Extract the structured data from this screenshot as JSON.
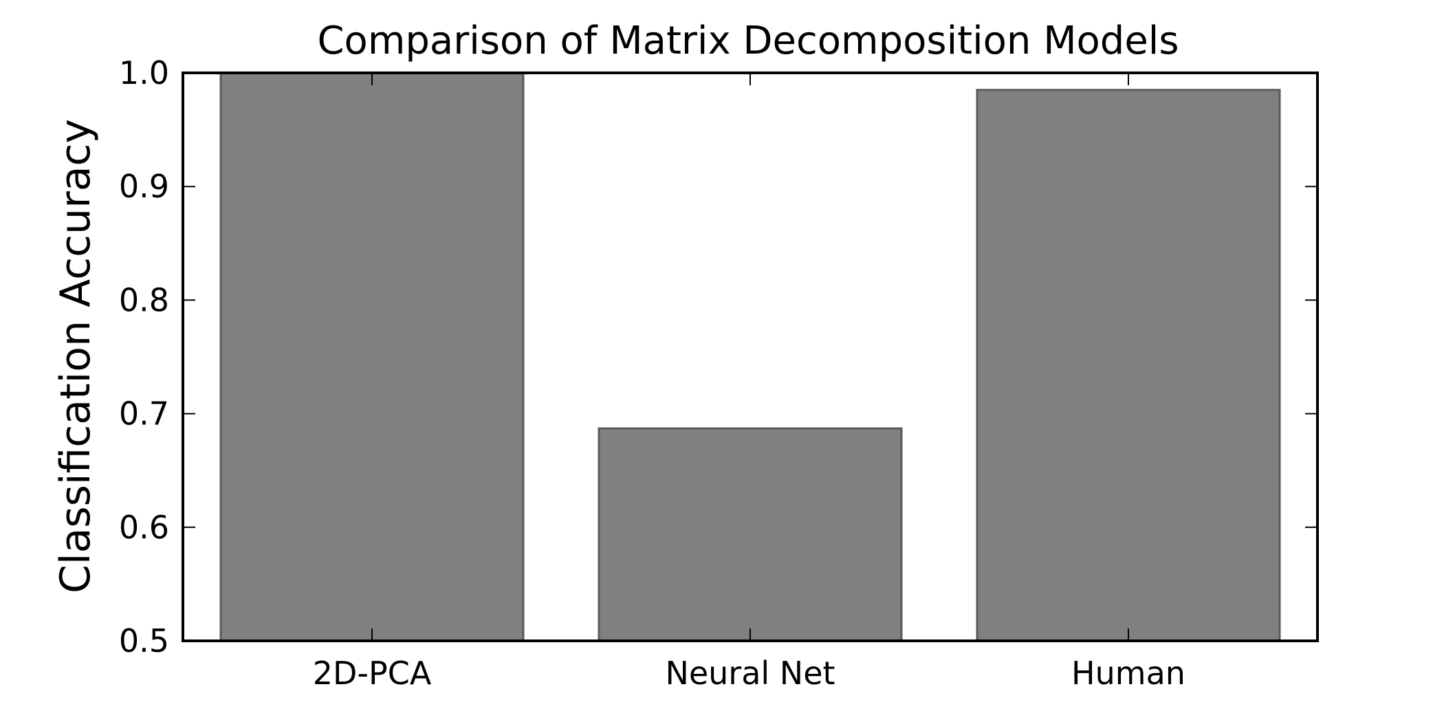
{
  "chart_data": {
    "type": "bar",
    "title": "Comparison of Matrix Decomposition Models",
    "xlabel": "",
    "ylabel": "Classification Accuracy",
    "categories": [
      "2D-PCA",
      "Neural Net",
      "Human"
    ],
    "values": [
      1.0,
      0.687,
      0.985
    ],
    "ylim": [
      0.5,
      1.0
    ],
    "yticks": [
      "0.5",
      "0.6",
      "0.7",
      "0.8",
      "0.9",
      "1.0"
    ],
    "grid": false,
    "legend": "none",
    "colors": {
      "bar_fill": "#808080",
      "bar_edge": "#5a5a5a",
      "axes": "#000000"
    }
  }
}
